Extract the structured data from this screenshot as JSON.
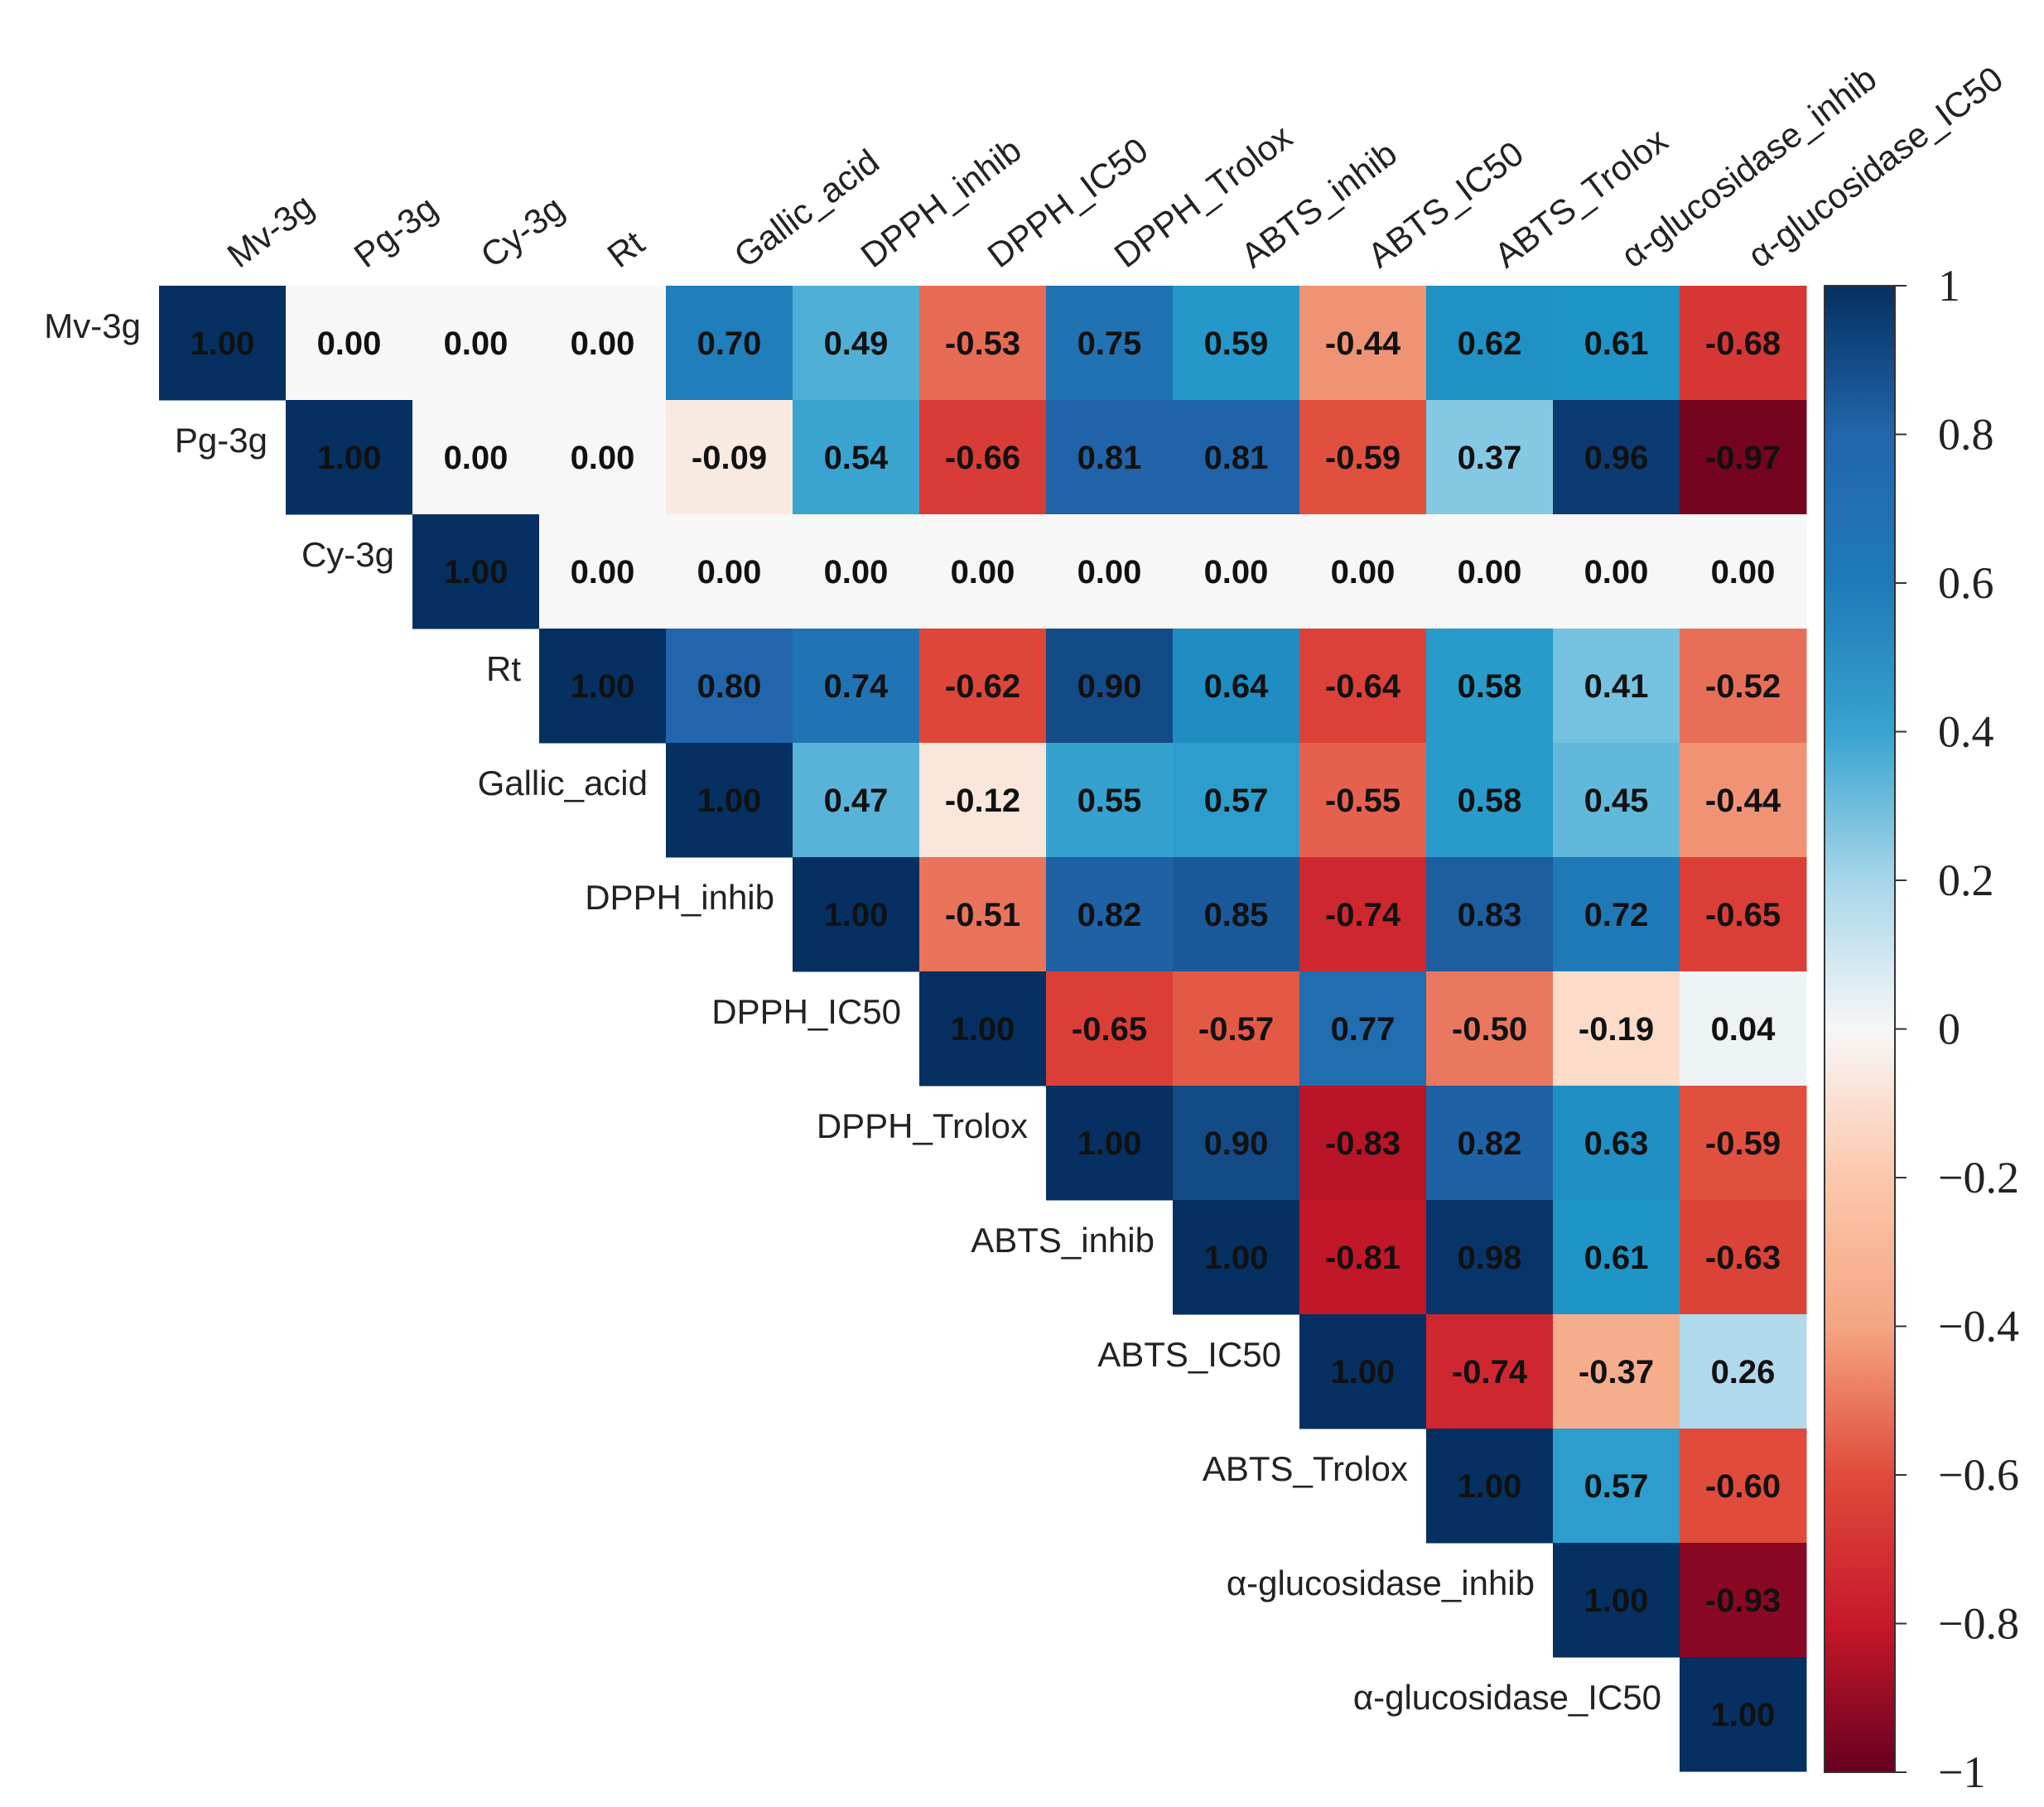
{
  "chart_data": {
    "type": "heatmap",
    "title": "",
    "variables": [
      "Mv-3g",
      "Pg-3g",
      "Cy-3g",
      "Rt",
      "Gallic_acid",
      "DPPH_inhib",
      "DPPH_IC50",
      "DPPH_Trolox",
      "ABTS_inhib",
      "ABTS_IC50",
      "ABTS_Trolox",
      "α-glucosidase_inhib",
      "α-glucosidase_IC50"
    ],
    "matrix_upper": [
      [
        "1.00",
        "0.00",
        "0.00",
        "0.00",
        "0.70",
        "0.49",
        "-0.53",
        "0.75",
        "0.59",
        "-0.44",
        "0.62",
        "0.61",
        "-0.68"
      ],
      [
        "1.00",
        "0.00",
        "0.00",
        "-0.09",
        "0.54",
        "-0.66",
        "0.81",
        "0.81",
        "-0.59",
        "0.37",
        "0.96",
        "-0.97"
      ],
      [
        "1.00",
        "0.00",
        "0.00",
        "0.00",
        "0.00",
        "0.00",
        "0.00",
        "0.00",
        "0.00",
        "0.00",
        "0.00"
      ],
      [
        "1.00",
        "0.80",
        "0.74",
        "-0.62",
        "0.90",
        "0.64",
        "-0.64",
        "0.58",
        "0.41",
        "-0.52"
      ],
      [
        "1.00",
        "0.47",
        "-0.12",
        "0.55",
        "0.57",
        "-0.55",
        "0.58",
        "0.45",
        "-0.44"
      ],
      [
        "1.00",
        "-0.51",
        "0.82",
        "0.85",
        "-0.74",
        "0.83",
        "0.72",
        "-0.65"
      ],
      [
        "1.00",
        "-0.65",
        "-0.57",
        "0.77",
        "-0.50",
        "-0.19",
        "0.04"
      ],
      [
        "1.00",
        "0.90",
        "-0.83",
        "0.82",
        "0.63",
        "-0.59"
      ],
      [
        "1.00",
        "-0.81",
        "0.98",
        "0.61",
        "-0.63"
      ],
      [
        "1.00",
        "-0.74",
        "-0.37",
        "0.26"
      ],
      [
        "1.00",
        "0.57",
        "-0.60"
      ],
      [
        "1.00",
        "-0.93"
      ],
      [
        "1.00"
      ]
    ],
    "colorbar": {
      "range": [
        -1,
        1
      ],
      "ticks": [
        "1",
        "0.8",
        "0.6",
        "0.4",
        "0.2",
        "0",
        "−0.2",
        "−0.4",
        "−0.6",
        "−0.8",
        "−1"
      ],
      "colormap": "RdBu"
    }
  }
}
